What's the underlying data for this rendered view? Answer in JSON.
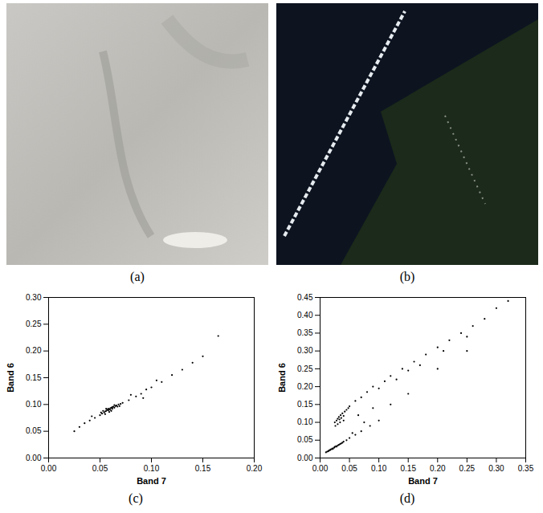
{
  "images": [
    {
      "label": "(a)"
    },
    {
      "label": "(b)"
    }
  ],
  "chart_data": [
    {
      "type": "scatter",
      "title": "(c)",
      "x_label": "Band 7",
      "y_label": "Band 6",
      "color": "#000000",
      "xlim": [
        0,
        0.2
      ],
      "xticks": [
        {
          "value": 0,
          "label": "0.00"
        },
        {
          "value": 0.05,
          "label": "0.05"
        },
        {
          "value": 0.1,
          "label": "0.10"
        },
        {
          "value": 0.15,
          "label": "0.15"
        },
        {
          "value": 0.2,
          "label": "0.20"
        }
      ],
      "ylim": [
        0,
        0.3
      ],
      "yticks": [
        {
          "value": 0,
          "label": "0.00"
        },
        {
          "value": 0.05,
          "label": "0.05"
        },
        {
          "value": 0.1,
          "label": "0.10"
        },
        {
          "value": 0.15,
          "label": "0.15"
        },
        {
          "value": 0.2,
          "label": "0.20"
        },
        {
          "value": 0.25,
          "label": "0.25"
        },
        {
          "value": 0.3,
          "label": "0.30"
        }
      ],
      "grid": false,
      "x": [
        0.05,
        0.052,
        0.054,
        0.055,
        0.056,
        0.057,
        0.058,
        0.058,
        0.059,
        0.06,
        0.06,
        0.061,
        0.062,
        0.062,
        0.063,
        0.064,
        0.065,
        0.066,
        0.067,
        0.068,
        0.07,
        0.072,
        0.053,
        0.056,
        0.059,
        0.064,
        0.069,
        0.051,
        0.055,
        0.061,
        0.025,
        0.03,
        0.035,
        0.04,
        0.045,
        0.042,
        0.078,
        0.085,
        0.09,
        0.095,
        0.1,
        0.11,
        0.12,
        0.13,
        0.14,
        0.15,
        0.165,
        0.08,
        0.092,
        0.105
      ],
      "values": [
        0.08,
        0.083,
        0.085,
        0.087,
        0.088,
        0.09,
        0.089,
        0.092,
        0.091,
        0.093,
        0.09,
        0.094,
        0.092,
        0.095,
        0.096,
        0.094,
        0.097,
        0.098,
        0.096,
        0.1,
        0.101,
        0.103,
        0.088,
        0.092,
        0.086,
        0.099,
        0.097,
        0.085,
        0.082,
        0.088,
        0.05,
        0.058,
        0.065,
        0.07,
        0.075,
        0.078,
        0.108,
        0.115,
        0.12,
        0.128,
        0.132,
        0.142,
        0.155,
        0.165,
        0.178,
        0.19,
        0.228,
        0.118,
        0.112,
        0.145
      ]
    },
    {
      "type": "scatter",
      "title": "(d)",
      "x_label": "Band 7",
      "y_label": "Band 6",
      "color": "#000000",
      "xlim": [
        0,
        0.35
      ],
      "xticks": [
        {
          "value": 0,
          "label": "0.00"
        },
        {
          "value": 0.05,
          "label": "0.05"
        },
        {
          "value": 0.1,
          "label": "0.10"
        },
        {
          "value": 0.15,
          "label": "0.15"
        },
        {
          "value": 0.2,
          "label": "0.20"
        },
        {
          "value": 0.25,
          "label": "0.25"
        },
        {
          "value": 0.3,
          "label": "0.30"
        },
        {
          "value": 0.35,
          "label": "0.35"
        }
      ],
      "ylim": [
        0,
        0.45
      ],
      "yticks": [
        {
          "value": 0,
          "label": "0.00"
        },
        {
          "value": 0.05,
          "label": "0.05"
        },
        {
          "value": 0.1,
          "label": "0.10"
        },
        {
          "value": 0.15,
          "label": "0.15"
        },
        {
          "value": 0.2,
          "label": "0.20"
        },
        {
          "value": 0.25,
          "label": "0.25"
        },
        {
          "value": 0.3,
          "label": "0.30"
        },
        {
          "value": 0.35,
          "label": "0.35"
        },
        {
          "value": 0.4,
          "label": "0.40"
        },
        {
          "value": 0.45,
          "label": "0.45"
        }
      ],
      "grid": false,
      "x": [
        0.01,
        0.012,
        0.014,
        0.015,
        0.017,
        0.018,
        0.02,
        0.021,
        0.022,
        0.024,
        0.025,
        0.027,
        0.028,
        0.03,
        0.032,
        0.034,
        0.036,
        0.038,
        0.04,
        0.045,
        0.05,
        0.06,
        0.07,
        0.085,
        0.1,
        0.025,
        0.028,
        0.03,
        0.032,
        0.033,
        0.035,
        0.036,
        0.038,
        0.04,
        0.042,
        0.03,
        0.034,
        0.045,
        0.048,
        0.05,
        0.026,
        0.04,
        0.06,
        0.07,
        0.08,
        0.09,
        0.1,
        0.11,
        0.12,
        0.13,
        0.14,
        0.15,
        0.16,
        0.17,
        0.18,
        0.2,
        0.21,
        0.22,
        0.24,
        0.25,
        0.26,
        0.28,
        0.3,
        0.32,
        0.15,
        0.2,
        0.25,
        0.12,
        0.09,
        0.065,
        0.055,
        0.075
      ],
      "values": [
        0.016,
        0.018,
        0.019,
        0.021,
        0.022,
        0.024,
        0.025,
        0.027,
        0.026,
        0.029,
        0.031,
        0.033,
        0.032,
        0.035,
        0.037,
        0.039,
        0.041,
        0.043,
        0.046,
        0.05,
        0.056,
        0.065,
        0.075,
        0.09,
        0.105,
        0.1,
        0.105,
        0.11,
        0.115,
        0.108,
        0.12,
        0.112,
        0.125,
        0.118,
        0.13,
        0.095,
        0.1,
        0.135,
        0.14,
        0.145,
        0.09,
        0.105,
        0.16,
        0.17,
        0.185,
        0.2,
        0.195,
        0.215,
        0.23,
        0.22,
        0.25,
        0.245,
        0.27,
        0.26,
        0.29,
        0.31,
        0.3,
        0.33,
        0.35,
        0.34,
        0.37,
        0.39,
        0.42,
        0.44,
        0.18,
        0.25,
        0.3,
        0.15,
        0.14,
        0.12,
        0.07,
        0.1
      ]
    }
  ]
}
